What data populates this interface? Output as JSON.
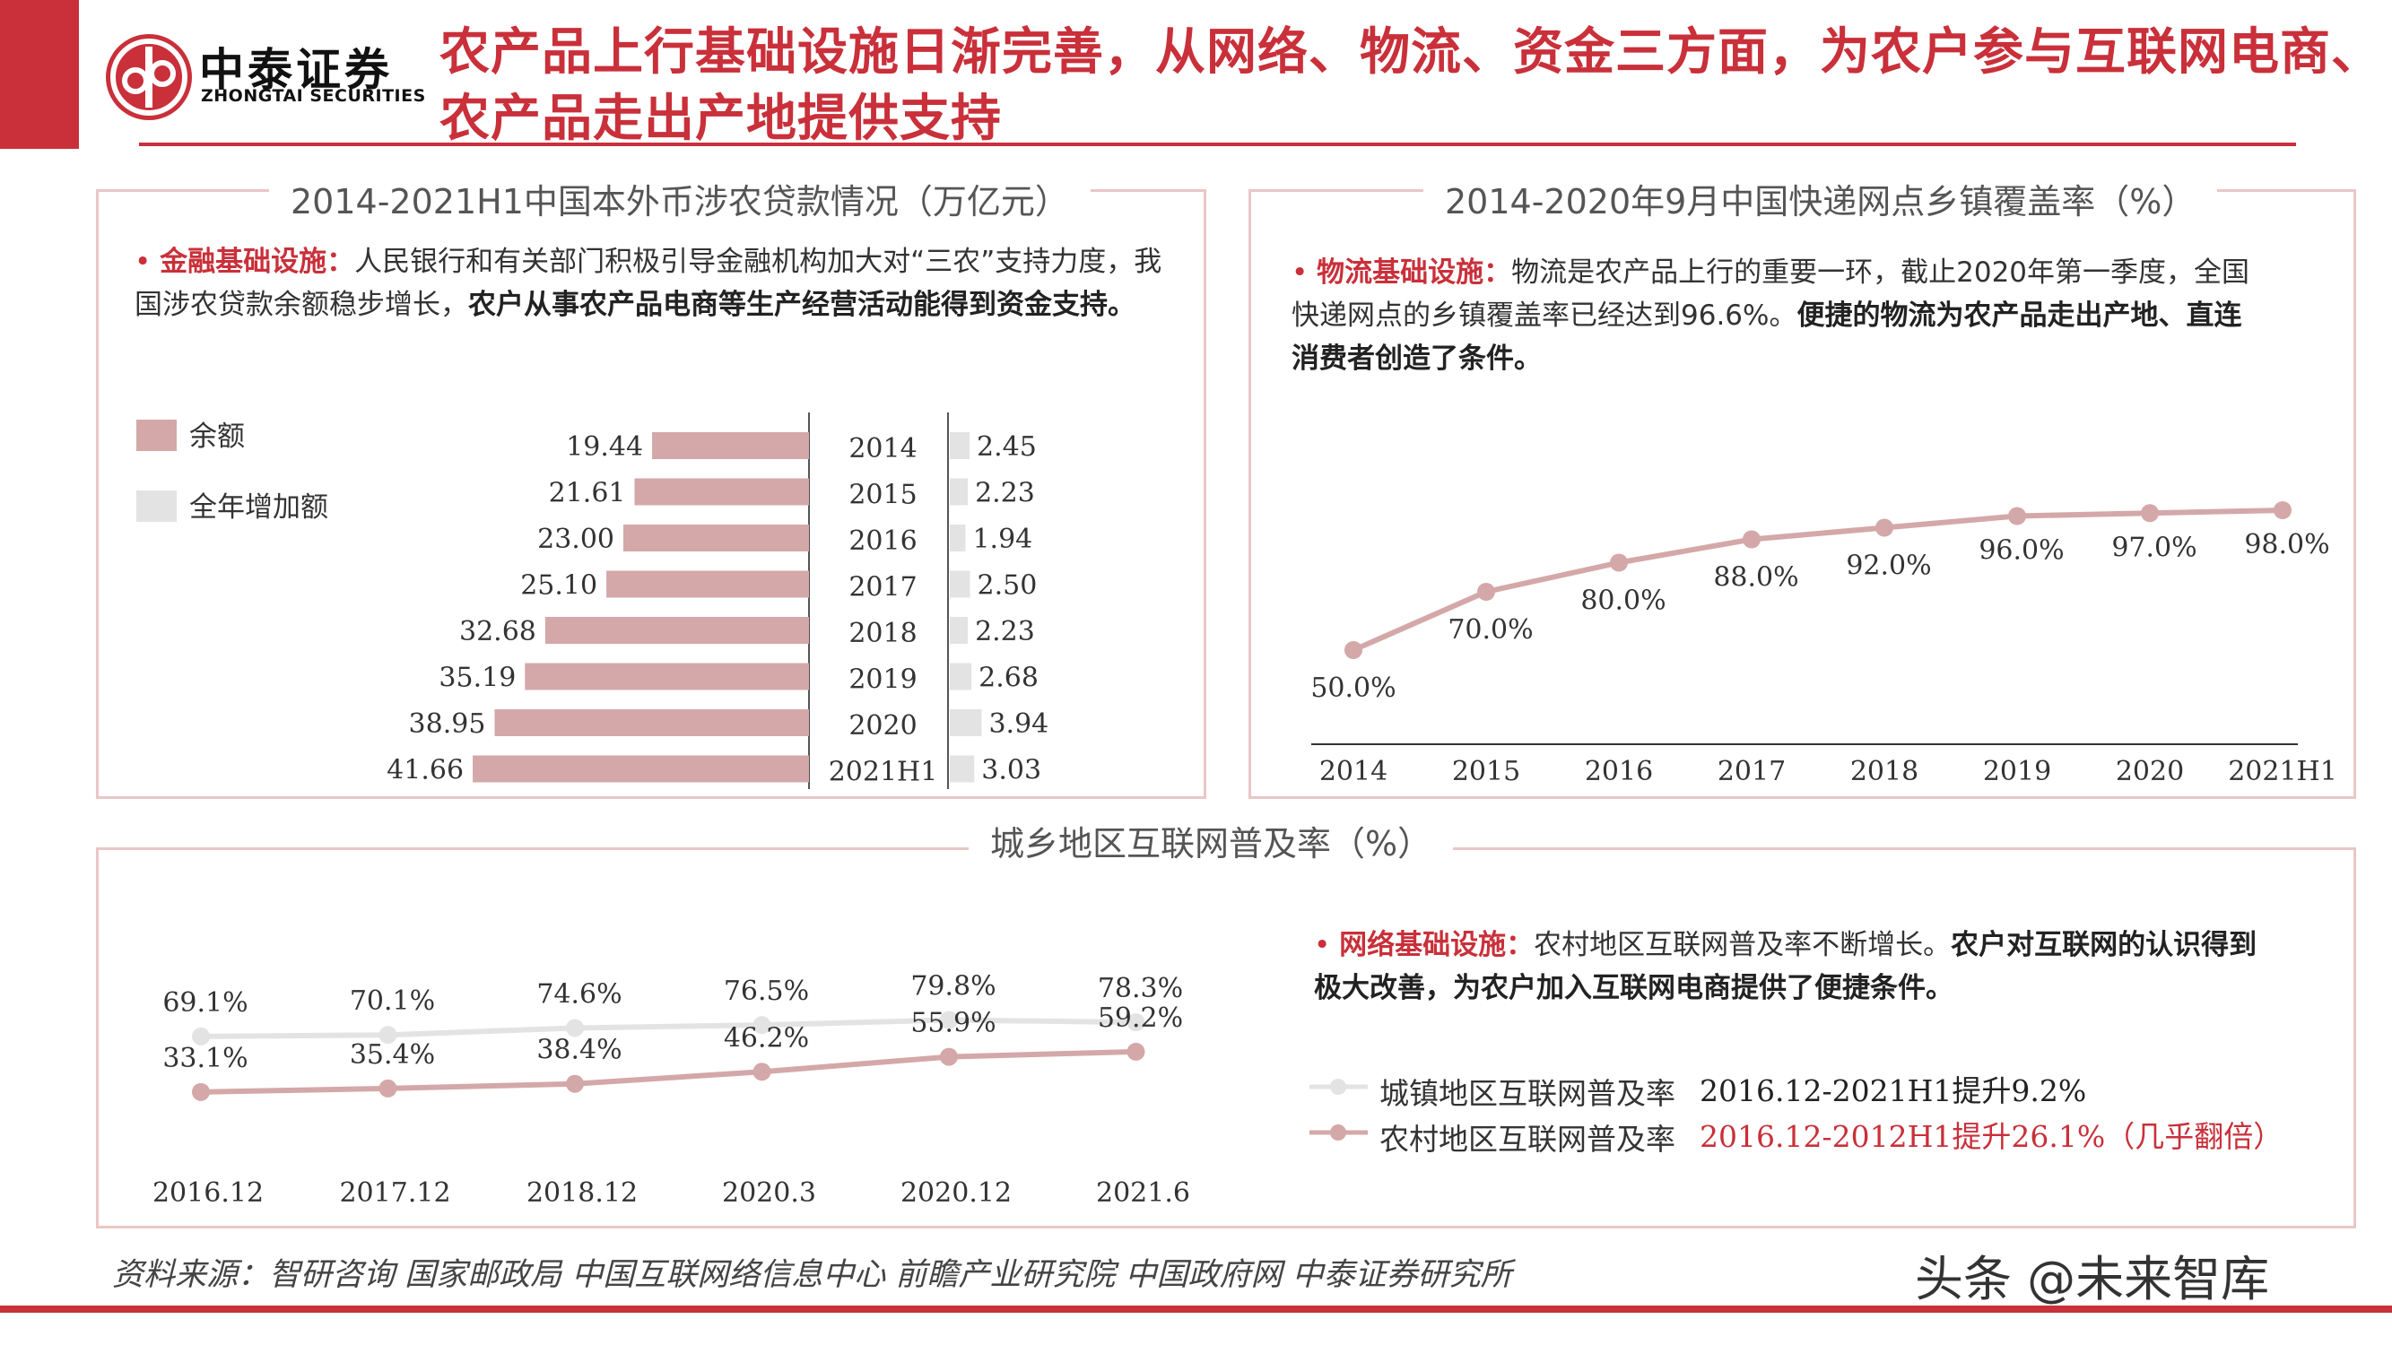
{
  "header": {
    "logo_cn": "中泰证券",
    "logo_en": "ZHONGTAI SECURITIES",
    "title": "农产品上行基础设施日渐完善，从网络、物流、资金三方面，为农户参与互联网电商、农产品走出产地提供支持"
  },
  "colors": {
    "accent": "#c9303a",
    "bar_balance": "#d4a8a8",
    "bar_increase": "#e3e3e3",
    "line_rural": "#d4a8a8",
    "line_urban": "#e3e3e3",
    "panel_border": "#ebc6c6"
  },
  "panels": {
    "loans": {
      "title": "2014-2021H1中国本外币涉农贷款情况（万亿元）",
      "bullet_label": "金融基础设施：",
      "bullet_text": "人民银行和有关部门积极引导金融机构加大对“三农”支持力度，我国涉农贷款余额稳步增长，",
      "bullet_bold": "农户从事农产品电商等生产经营活动能得到资金支持。"
    },
    "logistics": {
      "title": "2014-2020年9月中国快递网点乡镇覆盖率（%）",
      "bullet_label": "物流基础设施：",
      "bullet_text": "物流是农产品上行的重要一环，截止2020年第一季度，全国快递网点的乡镇覆盖率已经达到96.6%。",
      "bullet_bold": "便捷的物流为农产品走出产地、直连消费者创造了条件。"
    },
    "internet": {
      "title": "城乡地区互联网普及率（%）",
      "bullet_label": "网络基础设施：",
      "bullet_text": "农村地区互联网普及率不断增长。",
      "bullet_bold": "农户对互联网的认识得到极大改善，为农户加入互联网电商提供了便捷条件。",
      "legend": [
        {
          "name": "城镇地区互联网普及率",
          "note": "2016.12-2021H1提升9.2%"
        },
        {
          "name": "农村地区互联网普及率",
          "note": "2016.12-2012H1提升26.1%（几乎翻倍）"
        }
      ]
    }
  },
  "chart_data": [
    {
      "type": "bar",
      "orientation": "horizontal",
      "title": "2014-2021H1中国本外币涉农贷款情况（万亿元）",
      "categories": [
        "2014",
        "2015",
        "2016",
        "2017",
        "2018",
        "2019",
        "2020",
        "2021H1"
      ],
      "series": [
        {
          "name": "余额",
          "values": [
            19.44,
            21.61,
            23.0,
            25.1,
            32.68,
            35.19,
            38.95,
            41.66
          ],
          "labels": [
            "19.44",
            "21.61",
            "23.00",
            "25.10",
            "32.68",
            "35.19",
            "38.95",
            "41.66"
          ]
        },
        {
          "name": "全年增加额",
          "values": [
            2.45,
            2.23,
            1.94,
            2.5,
            2.23,
            2.68,
            3.94,
            3.03
          ],
          "labels": [
            "2.45",
            "2.23",
            "1.94",
            "2.50",
            "2.23",
            "2.68",
            "3.94",
            "3.03"
          ]
        }
      ],
      "legend_position": "left"
    },
    {
      "type": "line",
      "title": "2014-2020年9月中国快递网点乡镇覆盖率（%）",
      "x": [
        "2014",
        "2015",
        "2016",
        "2017",
        "2018",
        "2019",
        "2020",
        "2021H1"
      ],
      "values": [
        50.0,
        70.0,
        80.0,
        88.0,
        92.0,
        96.0,
        97.0,
        98.0
      ],
      "labels": [
        "50.0%",
        "70.0%",
        "80.0%",
        "88.0%",
        "92.0%",
        "96.0%",
        "97.0%",
        "98.0%"
      ],
      "ylim": [
        30,
        110
      ],
      "grid": false
    },
    {
      "type": "line",
      "title": "城乡地区互联网普及率（%）",
      "x": [
        "2016.12",
        "2017.12",
        "2018.12",
        "2020.3",
        "2020.12",
        "2021.6"
      ],
      "series": [
        {
          "name": "城镇地区互联网普及率",
          "values": [
            69.1,
            70.1,
            74.6,
            76.5,
            79.8,
            78.3
          ],
          "labels": [
            "69.1%",
            "70.1%",
            "74.6%",
            "76.5%",
            "79.8%",
            "78.3%"
          ]
        },
        {
          "name": "农村地区互联网普及率",
          "values": [
            33.1,
            35.4,
            38.4,
            46.2,
            55.9,
            59.2
          ],
          "labels": [
            "33.1%",
            "35.4%",
            "38.4%",
            "46.2%",
            "55.9%",
            "59.2%"
          ]
        }
      ],
      "legend_position": "right",
      "grid": false
    }
  ],
  "footer": {
    "source": "资料来源：智研咨询 国家邮政局 中国互联网络信息中心 前瞻产业研究院 中国政府网 中泰证券研究所",
    "watermark": "头条 @未来智库"
  }
}
